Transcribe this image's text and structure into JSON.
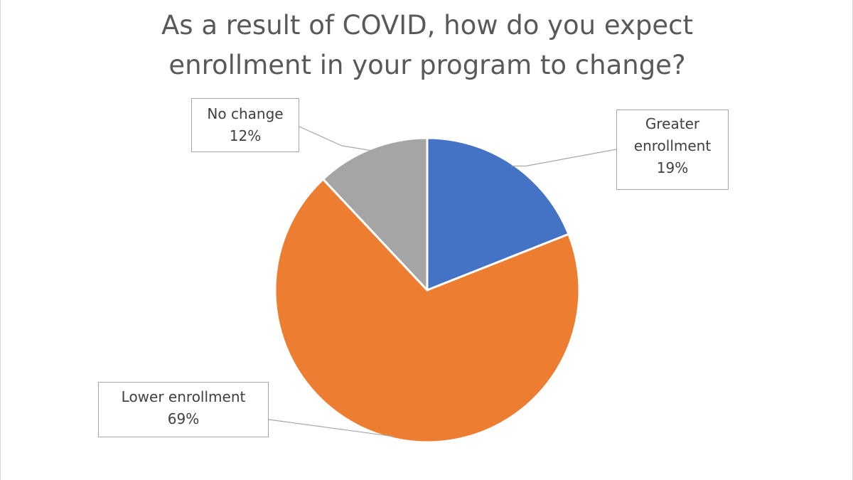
{
  "chart_data": {
    "type": "pie",
    "title": "As a result of COVID, how do you expect enrollment in your program to change?",
    "title_lines": [
      "As a result of COVID, how do you expect",
      "enrollment in your program to change?"
    ],
    "slices": [
      {
        "label": "Greater enrollment",
        "label_lines": [
          "Greater",
          "enrollment"
        ],
        "value": 19,
        "value_label": "19%",
        "color": "#4472C4"
      },
      {
        "label": "Lower enrollment",
        "label_lines": [
          "Lower enrollment"
        ],
        "value": 69,
        "value_label": "69%",
        "color": "#ED7D31"
      },
      {
        "label": "No change",
        "label_lines": [
          "No change"
        ],
        "value": 12,
        "value_label": "12%",
        "color": "#A5A5A5"
      }
    ],
    "start_angle": "12 o'clock",
    "direction": "clockwise",
    "legend": "none"
  }
}
